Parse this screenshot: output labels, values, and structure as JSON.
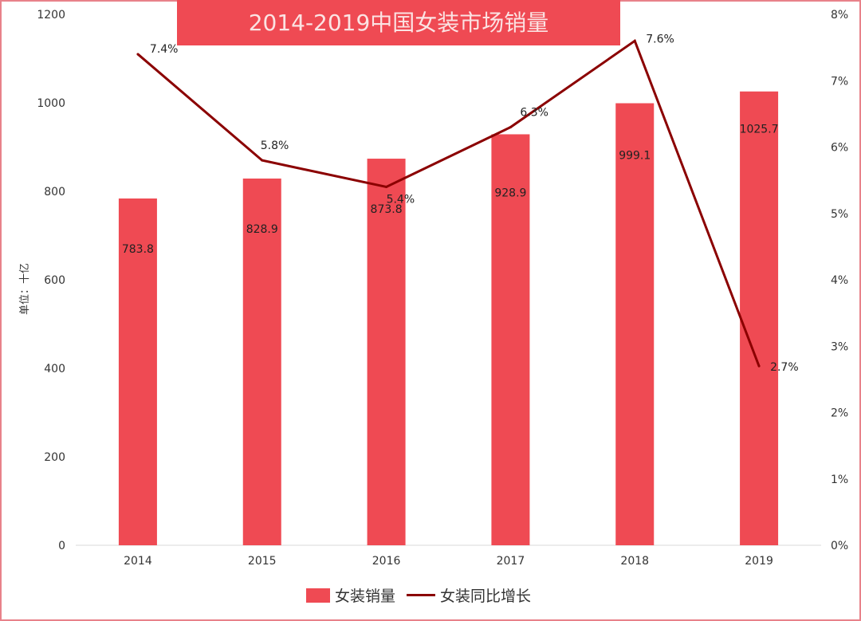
{
  "chart_data": {
    "type": "bar+line",
    "title": "2014-2019中国女装市场销量",
    "ylabel": "单位：十亿",
    "categories": [
      "2014",
      "2015",
      "2016",
      "2017",
      "2018",
      "2019"
    ],
    "series": [
      {
        "name": "女装销量",
        "type": "bar",
        "axis": "left",
        "values": [
          783.8,
          828.9,
          873.8,
          928.9,
          999.1,
          1025.7
        ],
        "labels": [
          "783.8",
          "828.9",
          "873.8",
          "928.9",
          "999.1",
          "1025.7"
        ],
        "color": "#ef4a53"
      },
      {
        "name": "女装同比增长",
        "type": "line",
        "axis": "right",
        "values": [
          7.4,
          5.8,
          5.4,
          6.3,
          7.6,
          2.7
        ],
        "labels": [
          "7.4%",
          "5.8%",
          "5.4%",
          "6.3%",
          "7.6%",
          "2.7%"
        ],
        "color": "#8b0000"
      }
    ],
    "ylim": [
      0,
      1200
    ],
    "yticks": [
      "0",
      "200",
      "400",
      "600",
      "800",
      "1000",
      "1200"
    ],
    "y2lim": [
      0,
      8
    ],
    "y2ticks": [
      "0%",
      "1%",
      "2%",
      "3%",
      "4%",
      "5%",
      "6%",
      "7%",
      "8%"
    ],
    "grid": false,
    "legend": "bottom"
  }
}
